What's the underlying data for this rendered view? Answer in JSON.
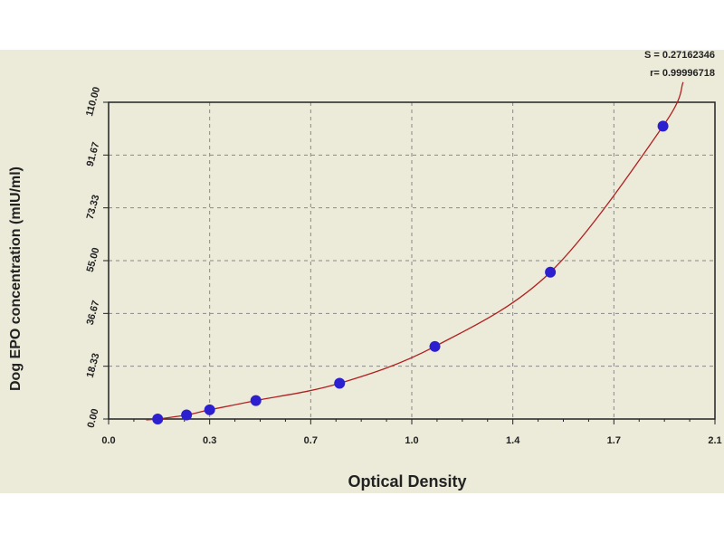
{
  "chart_data": {
    "type": "scatter",
    "xlabel": "Optical Density",
    "ylabel": "Dog EPO concentration (mIU/ml)",
    "x_ticks": [
      "0.0",
      "0.3",
      "0.7",
      "1.0",
      "1.4",
      "1.7",
      "2.1"
    ],
    "y_ticks": [
      "0.00",
      "18.33",
      "36.67",
      "55.00",
      "73.33",
      "91.67",
      "110.00"
    ],
    "xlim": [
      0,
      2.1
    ],
    "ylim": [
      0,
      110
    ],
    "grid": true,
    "stats": {
      "s": "S = 0.27162346",
      "r": "r= 0.99996718"
    },
    "points": [
      {
        "x": 0.17,
        "y": 0
      },
      {
        "x": 0.27,
        "y": 1.4
      },
      {
        "x": 0.35,
        "y": 3.2
      },
      {
        "x": 0.51,
        "y": 6.4
      },
      {
        "x": 0.8,
        "y": 12.4
      },
      {
        "x": 1.13,
        "y": 25.2
      },
      {
        "x": 1.53,
        "y": 51.0
      },
      {
        "x": 1.92,
        "y": 101.7
      }
    ],
    "colors": {
      "points": "#2b1fd0",
      "curve": "#b02020",
      "background": "#ecead9"
    }
  }
}
